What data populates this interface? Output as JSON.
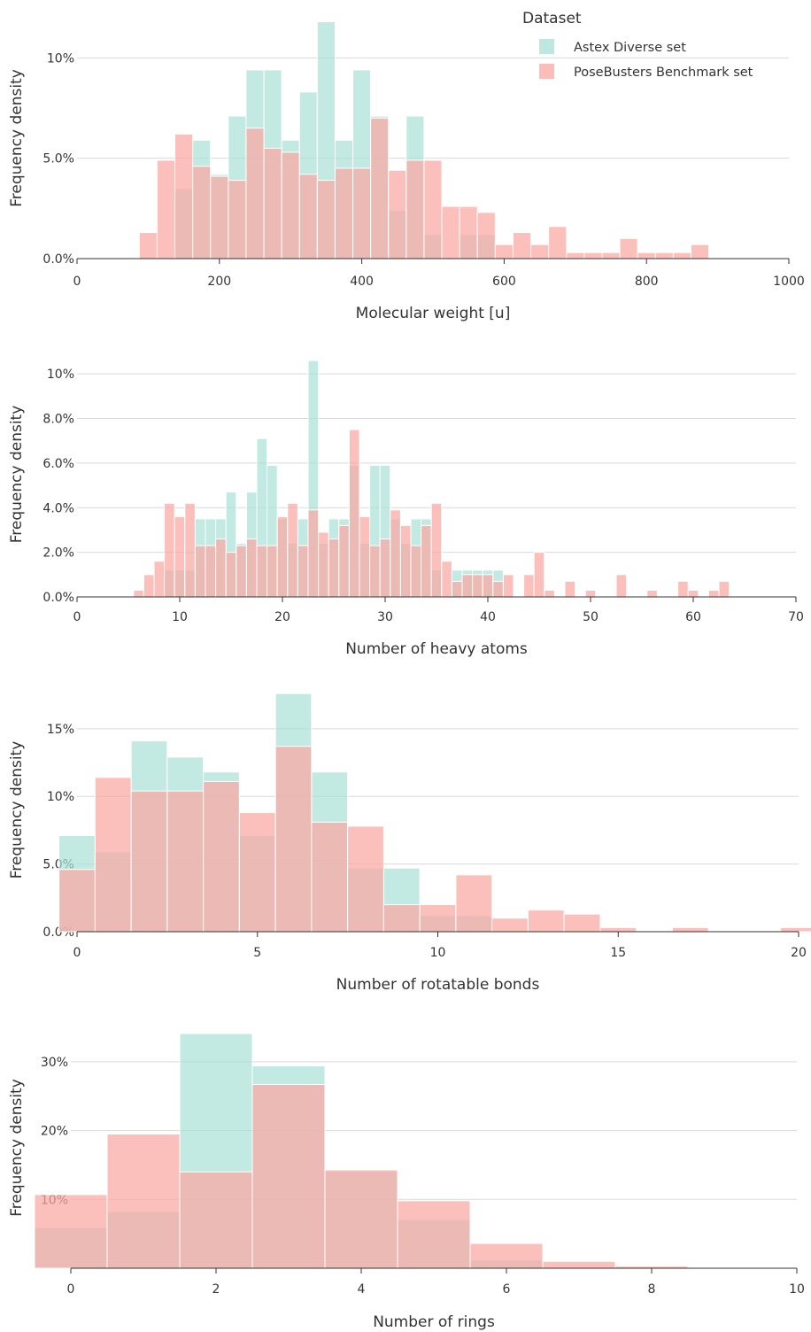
{
  "legend": {
    "title": "Dataset",
    "position": "top-right",
    "items": [
      {
        "label": "Astex Diverse set",
        "color": "#a8dfd6"
      },
      {
        "label": "PoseBusters Benchmark set",
        "color": "#fba7a2"
      }
    ]
  },
  "chart_data": [
    {
      "type": "bar",
      "xlabel": "Molecular weight [u]",
      "ylabel": "Frequency density",
      "xlim": [
        0,
        1000
      ],
      "ylim": [
        0,
        12
      ],
      "x_ticks": [
        "0",
        "200",
        "400",
        "600",
        "800",
        "1000"
      ],
      "y_ticks": [
        "0.0%",
        "5.0%",
        "10%"
      ],
      "bin_width": 25,
      "x": [
        100,
        125,
        150,
        175,
        200,
        225,
        250,
        275,
        300,
        325,
        350,
        375,
        400,
        425,
        450,
        475,
        500,
        525,
        550,
        575,
        600,
        625,
        650,
        675,
        700,
        725,
        750,
        775,
        800,
        825,
        850,
        875
      ],
      "series": [
        {
          "name": "Astex Diverse set",
          "values": [
            0,
            0,
            3.5,
            5.9,
            4.2,
            7.1,
            9.4,
            9.4,
            5.9,
            8.3,
            11.8,
            5.9,
            9.4,
            7.1,
            2.4,
            7.1,
            1.2,
            0,
            1.2,
            1.2,
            0,
            0,
            0,
            0,
            0,
            0,
            0,
            0,
            0,
            0,
            0,
            0
          ]
        },
        {
          "name": "PoseBusters Benchmark set",
          "values": [
            1.3,
            4.9,
            6.2,
            4.6,
            4.1,
            3.9,
            6.5,
            5.5,
            5.3,
            4.2,
            3.9,
            4.5,
            4.5,
            7.0,
            4.4,
            4.9,
            4.9,
            2.6,
            2.6,
            2.3,
            0.7,
            1.3,
            0.7,
            1.6,
            0.3,
            0.3,
            0.3,
            1.0,
            0.3,
            0.3,
            0.3,
            0.7
          ]
        }
      ]
    },
    {
      "type": "bar",
      "xlabel": "Number of heavy atoms",
      "ylabel": "Frequency density",
      "xlim": [
        0,
        70
      ],
      "ylim": [
        0,
        11
      ],
      "x_ticks": [
        "0",
        "10",
        "20",
        "30",
        "40",
        "50",
        "60",
        "70"
      ],
      "y_ticks": [
        "0.0%",
        "2.0%",
        "4.0%",
        "6.0%",
        "8.0%",
        "10%"
      ],
      "bin_width": 1,
      "x": [
        6,
        7,
        8,
        9,
        10,
        11,
        12,
        13,
        14,
        15,
        16,
        17,
        18,
        19,
        20,
        21,
        22,
        23,
        24,
        25,
        26,
        27,
        28,
        29,
        30,
        31,
        32,
        33,
        34,
        35,
        36,
        37,
        38,
        39,
        40,
        41,
        42,
        43,
        44,
        45,
        46,
        47,
        48,
        49,
        50,
        51,
        52,
        53,
        54,
        55,
        56,
        57,
        58,
        59,
        60,
        61,
        62,
        63,
        64
      ],
      "series": [
        {
          "name": "Astex Diverse set",
          "values": [
            0,
            0,
            0,
            1.2,
            1.2,
            1.2,
            3.5,
            3.5,
            3.5,
            4.7,
            2.4,
            4.7,
            7.1,
            5.9,
            3.5,
            2.4,
            3.5,
            10.6,
            2.4,
            3.5,
            3.5,
            5.9,
            2.4,
            5.9,
            5.9,
            3.5,
            2.4,
            3.5,
            3.5,
            1.2,
            0,
            1.2,
            1.2,
            1.2,
            1.2,
            1.2,
            0,
            0,
            0,
            0,
            0,
            0,
            0,
            0,
            0,
            0,
            0,
            0,
            0,
            0,
            0,
            0,
            0,
            0,
            0,
            0,
            0,
            0,
            0
          ]
        },
        {
          "name": "PoseBusters Benchmark set",
          "values": [
            0.3,
            1.0,
            1.6,
            4.2,
            3.6,
            4.2,
            2.3,
            2.3,
            2.6,
            2.0,
            2.3,
            2.6,
            2.3,
            2.3,
            3.6,
            4.2,
            2.3,
            3.9,
            2.9,
            2.6,
            3.2,
            7.5,
            3.6,
            2.3,
            2.6,
            3.9,
            3.2,
            2.3,
            3.2,
            4.2,
            1.6,
            0.7,
            1.0,
            1.0,
            1.0,
            0.7,
            1.0,
            0,
            1.0,
            2.0,
            0.3,
            0,
            0.7,
            0,
            0.3,
            0,
            0,
            1.0,
            0,
            0,
            0.3,
            0,
            0,
            0.7,
            0.3,
            0,
            0.3,
            0.7,
            0
          ]
        }
      ]
    },
    {
      "type": "bar",
      "xlabel": "Number of rotatable bonds",
      "ylabel": "Frequency density",
      "xlim": [
        0,
        20
      ],
      "ylim": [
        0,
        18
      ],
      "x_ticks": [
        "0",
        "5",
        "10",
        "15",
        "20"
      ],
      "y_ticks": [
        "0.0%",
        "5.0%",
        "10%",
        "15%"
      ],
      "bin_width": 1,
      "x": [
        0,
        1,
        2,
        3,
        4,
        5,
        6,
        7,
        8,
        9,
        10,
        11,
        12,
        13,
        14,
        15,
        16,
        17,
        18,
        19,
        20
      ],
      "series": [
        {
          "name": "Astex Diverse set",
          "values": [
            7.1,
            5.9,
            14.1,
            12.9,
            11.8,
            7.1,
            17.6,
            11.8,
            4.7,
            4.7,
            1.2,
            1.2,
            0,
            0,
            0,
            0,
            0,
            0,
            0,
            0,
            0
          ]
        },
        {
          "name": "PoseBusters Benchmark set",
          "values": [
            4.6,
            11.4,
            10.4,
            10.4,
            11.1,
            8.8,
            13.7,
            8.1,
            7.8,
            2.0,
            2.0,
            4.2,
            1.0,
            1.6,
            1.3,
            0.3,
            0,
            0.3,
            0,
            0,
            0.3
          ]
        }
      ]
    },
    {
      "type": "bar",
      "xlabel": "Number of rings",
      "ylabel": "Frequency density",
      "xlim": [
        0,
        10
      ],
      "ylim": [
        0,
        35
      ],
      "x_ticks": [
        "0",
        "2",
        "4",
        "6",
        "8",
        "10"
      ],
      "y_ticks": [
        "10%",
        "20%",
        "30%"
      ],
      "bin_width": 1,
      "x": [
        0,
        1,
        2,
        3,
        4,
        5,
        6,
        7,
        8,
        9,
        10
      ],
      "series": [
        {
          "name": "Astex Diverse set",
          "values": [
            5.9,
            8.2,
            34.1,
            29.4,
            14.1,
            7.1,
            1.2,
            0,
            0,
            0,
            0
          ]
        },
        {
          "name": "PoseBusters Benchmark set",
          "values": [
            10.7,
            19.5,
            14.0,
            26.7,
            14.3,
            9.8,
            3.6,
            1.0,
            0.3,
            0,
            0
          ]
        }
      ]
    }
  ]
}
